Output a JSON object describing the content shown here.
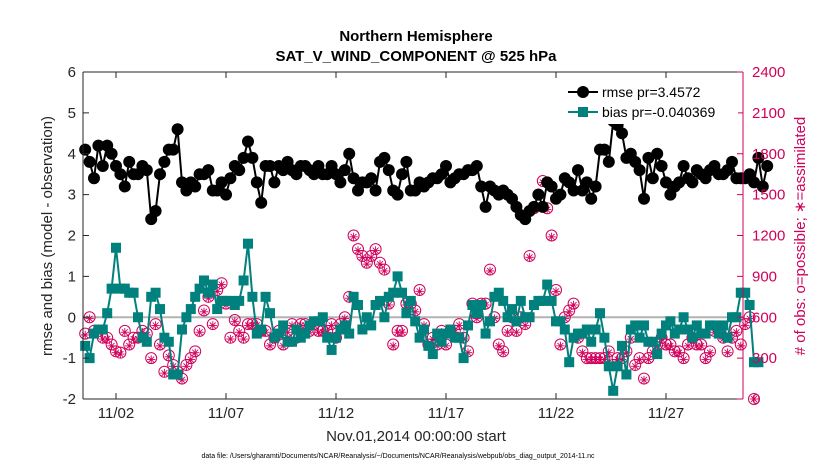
{
  "chart_data": {
    "type": "line",
    "title": "Northern Hemisphere",
    "subtitle": "SAT_V_WIND_COMPONENT @ 525 hPa",
    "xlabel": "Nov.01,2014 00:00:00 start",
    "ylabel": "rmse and bias (model - observation)",
    "ylabel_right": "# of obs: o=possible; ∗=assimilated",
    "footer": "data file: /Users/gharamti/Documents/NCAR/Reanalysis/~/Documents/NCAR/Reanalysis/webpub/obs_diag_output_2014-11.nc",
    "xlim": [
      0.5,
      30.5
    ],
    "ylim": [
      -2,
      6
    ],
    "ylim_right": [
      0,
      2400
    ],
    "x_ticks": [
      2,
      7,
      12,
      17,
      22,
      27
    ],
    "x_tick_labels": [
      "11/02",
      "11/07",
      "11/12",
      "11/17",
      "11/22",
      "11/27"
    ],
    "y_ticks": [
      -2,
      -1,
      0,
      1,
      2,
      3,
      4,
      5,
      6
    ],
    "y_ticks_right": [
      0,
      300,
      600,
      900,
      1200,
      1500,
      1800,
      2100,
      2400
    ],
    "legend_location": "top-right",
    "colors": {
      "rmse": "#000000",
      "bias": "#00817d",
      "obs": "#d1005a",
      "zero": "#b3b3b3"
    },
    "series": [
      {
        "name": "rmse pr=3.4572",
        "axis": "left",
        "values": [
          4.1,
          3.8,
          3.4,
          4.2,
          3.7,
          4.2,
          4.0,
          3.7,
          3.5,
          3.2,
          3.8,
          3.5,
          3.5,
          3.7,
          3.6,
          2.4,
          2.6,
          3.5,
          3.8,
          4.1,
          4.1,
          4.6,
          3.3,
          3.1,
          3.3,
          3.2,
          3.5,
          3.5,
          3.6,
          3.1,
          3.1,
          3.3,
          3.0,
          3.4,
          3.7,
          3.6,
          3.9,
          4.3,
          3.9,
          3.3,
          2.8,
          3.7,
          3.7,
          3.3,
          3.7,
          3.6,
          3.8,
          3.6,
          3.5,
          3.7,
          3.7,
          3.6,
          3.5,
          3.7,
          3.5,
          3.5,
          3.7,
          3.5,
          3.3,
          3.6,
          4.0,
          3.4,
          3.1,
          3.3,
          3.3,
          3.4,
          3.1,
          3.8,
          3.9,
          3.6,
          3.1,
          3.0,
          3.5,
          3.8,
          3.1,
          3.1,
          3.3,
          3.2,
          3.3,
          3.4,
          3.4,
          3.5,
          3.7,
          3.3,
          3.4,
          3.5,
          3.5,
          3.6,
          3.6,
          3.7,
          3.2,
          2.7,
          3.2,
          3.1,
          3.0,
          3.1,
          3.0,
          2.9,
          2.7,
          2.5,
          2.4,
          2.6,
          2.7,
          3.0,
          2.7,
          3.3,
          3.2,
          2.9,
          3.0,
          3.4,
          3.3,
          3.1,
          3.6,
          3.1,
          3.3,
          2.9,
          3.2,
          4.1,
          4.1,
          3.8,
          4.8,
          4.7,
          4.5,
          3.9,
          4.0,
          3.8,
          3.6,
          2.9,
          3.9,
          3.4,
          4.0,
          3.7,
          3.3,
          3.0,
          3.2,
          3.3,
          3.7,
          3.4,
          3.3,
          3.6,
          3.5,
          3.4,
          3.6,
          3.7,
          3.5,
          3.5,
          3.6,
          3.8,
          3.4,
          3.4,
          3.4,
          3.5,
          3.3,
          3.9,
          3.2,
          3.7
        ]
      },
      {
        "name": "bias pr=-0.040369",
        "axis": "left",
        "values": [
          -0.7,
          -1.0,
          -0.4,
          -0.3,
          -0.3,
          0.1,
          0.7,
          1.7,
          0.7,
          0.7,
          0.6,
          0.6,
          0.0,
          -0.5,
          -0.6,
          0.5,
          0.6,
          0.2,
          -0.5,
          -0.6,
          -1.4,
          -1.4,
          -0.3,
          0.0,
          0.2,
          0.5,
          0.7,
          0.9,
          0.6,
          0.8,
          0.2,
          0.4,
          0.4,
          0.4,
          0.3,
          0.4,
          0.9,
          1.8,
          0.5,
          -0.4,
          -0.3,
          0.5,
          0.1,
          -0.5,
          -0.4,
          -0.2,
          -0.6,
          -0.6,
          -0.3,
          -0.5,
          -0.4,
          -0.2,
          -0.1,
          -0.1,
          0.0,
          -0.5,
          -0.8,
          -0.5,
          -0.3,
          -0.2,
          -0.4,
          0.5,
          0.3,
          -0.3,
          0.0,
          -0.2,
          0.3,
          0.4,
          0.0,
          0.5,
          0.6,
          1.0,
          0.6,
          0.1,
          0.4,
          -0.1,
          -0.5,
          -0.3,
          -0.7,
          -0.9,
          -0.4,
          -0.6,
          -0.4,
          -0.3,
          -0.5,
          -0.5,
          -1.0,
          -0.2,
          0.3,
          0.1,
          0.3,
          -0.4,
          -0.1,
          0.5,
          0.6,
          0.4,
          0.0,
          0.2,
          -0.1,
          0.4,
          0.0,
          0.0,
          0.3,
          0.4,
          0.4,
          0.8,
          0.4,
          -0.1,
          -0.1,
          -0.3,
          -1.1,
          -0.5,
          -0.4,
          -0.4,
          -0.3,
          -0.6,
          -0.3,
          0.1,
          -0.5,
          -1.2,
          -1.8,
          -1.2,
          -0.7,
          -1.4,
          -0.3,
          -0.2,
          -0.5,
          -0.2,
          -0.6,
          -0.6,
          -0.9,
          -0.4,
          -0.2,
          -0.1,
          -0.4,
          -0.3,
          0.0,
          -0.3,
          -0.5,
          -0.2,
          -0.4,
          -0.4,
          -0.2,
          -0.2,
          -0.4,
          -0.2,
          -0.5,
          0.0,
          0.0,
          0.6,
          0.6,
          0.3,
          -1.1,
          -1.1
        ]
      },
      {
        "name": "possible",
        "axis": "right",
        "values": [
          480,
          600,
          500,
          500,
          450,
          450,
          400,
          350,
          340,
          500,
          400,
          450,
          450,
          500,
          480,
          300,
          550,
          400,
          200,
          320,
          250,
          200,
          150,
          250,
          300,
          350,
          500,
          650,
          750,
          550,
          800,
          850,
          700,
          450,
          580,
          500,
          450,
          550,
          550,
          550,
          500,
          500,
          400,
          450,
          500,
          400,
          500,
          550,
          450,
          550,
          550,
          500,
          550,
          500,
          500,
          500,
          550,
          450,
          550,
          600,
          750,
          1200,
          1100,
          1050,
          1000,
          1050,
          1100,
          1000,
          950,
          700,
          400,
          500,
          500,
          700,
          700,
          650,
          800,
          550,
          400,
          450,
          400,
          500,
          400,
          500,
          500,
          550,
          450,
          350,
          700,
          600,
          700,
          700,
          950,
          600,
          400,
          350,
          500,
          600,
          500,
          600,
          550,
          1050,
          1400,
          1500,
          1600,
          1400,
          1200,
          800,
          400,
          600,
          650,
          700,
          450,
          350,
          300,
          300,
          300,
          300,
          300,
          350,
          250,
          300,
          300,
          350,
          450,
          250,
          300,
          150,
          300,
          350,
          400,
          450,
          400,
          400,
          350,
          350,
          300,
          400,
          450,
          400,
          400,
          300,
          350,
          500,
          500,
          450,
          350,
          450,
          500,
          400,
          550,
          600,
          0
        ]
      },
      {
        "name": "assimilated",
        "axis": "right",
        "values": [
          470,
          590,
          490,
          490,
          440,
          440,
          390,
          340,
          330,
          490,
          390,
          440,
          440,
          490,
          470,
          290,
          540,
          390,
          190,
          310,
          240,
          190,
          140,
          240,
          290,
          340,
          490,
          640,
          740,
          540,
          790,
          840,
          690,
          440,
          570,
          490,
          440,
          540,
          540,
          540,
          490,
          490,
          390,
          440,
          490,
          390,
          490,
          540,
          440,
          540,
          540,
          490,
          540,
          490,
          490,
          490,
          540,
          440,
          540,
          590,
          740,
          1190,
          1090,
          1040,
          990,
          1040,
          1090,
          990,
          940,
          690,
          390,
          490,
          490,
          690,
          690,
          640,
          790,
          540,
          390,
          440,
          390,
          490,
          390,
          490,
          490,
          540,
          440,
          340,
          690,
          590,
          690,
          690,
          940,
          590,
          390,
          340,
          490,
          590,
          490,
          590,
          540,
          1040,
          1390,
          1490,
          1590,
          1390,
          1190,
          790,
          390,
          590,
          640,
          690,
          440,
          340,
          290,
          290,
          290,
          290,
          290,
          340,
          240,
          290,
          290,
          340,
          440,
          240,
          290,
          140,
          290,
          340,
          390,
          440,
          390,
          390,
          340,
          340,
          290,
          390,
          440,
          390,
          390,
          290,
          340,
          490,
          490,
          440,
          340,
          440,
          490,
          390,
          540,
          590,
          0
        ]
      }
    ]
  }
}
